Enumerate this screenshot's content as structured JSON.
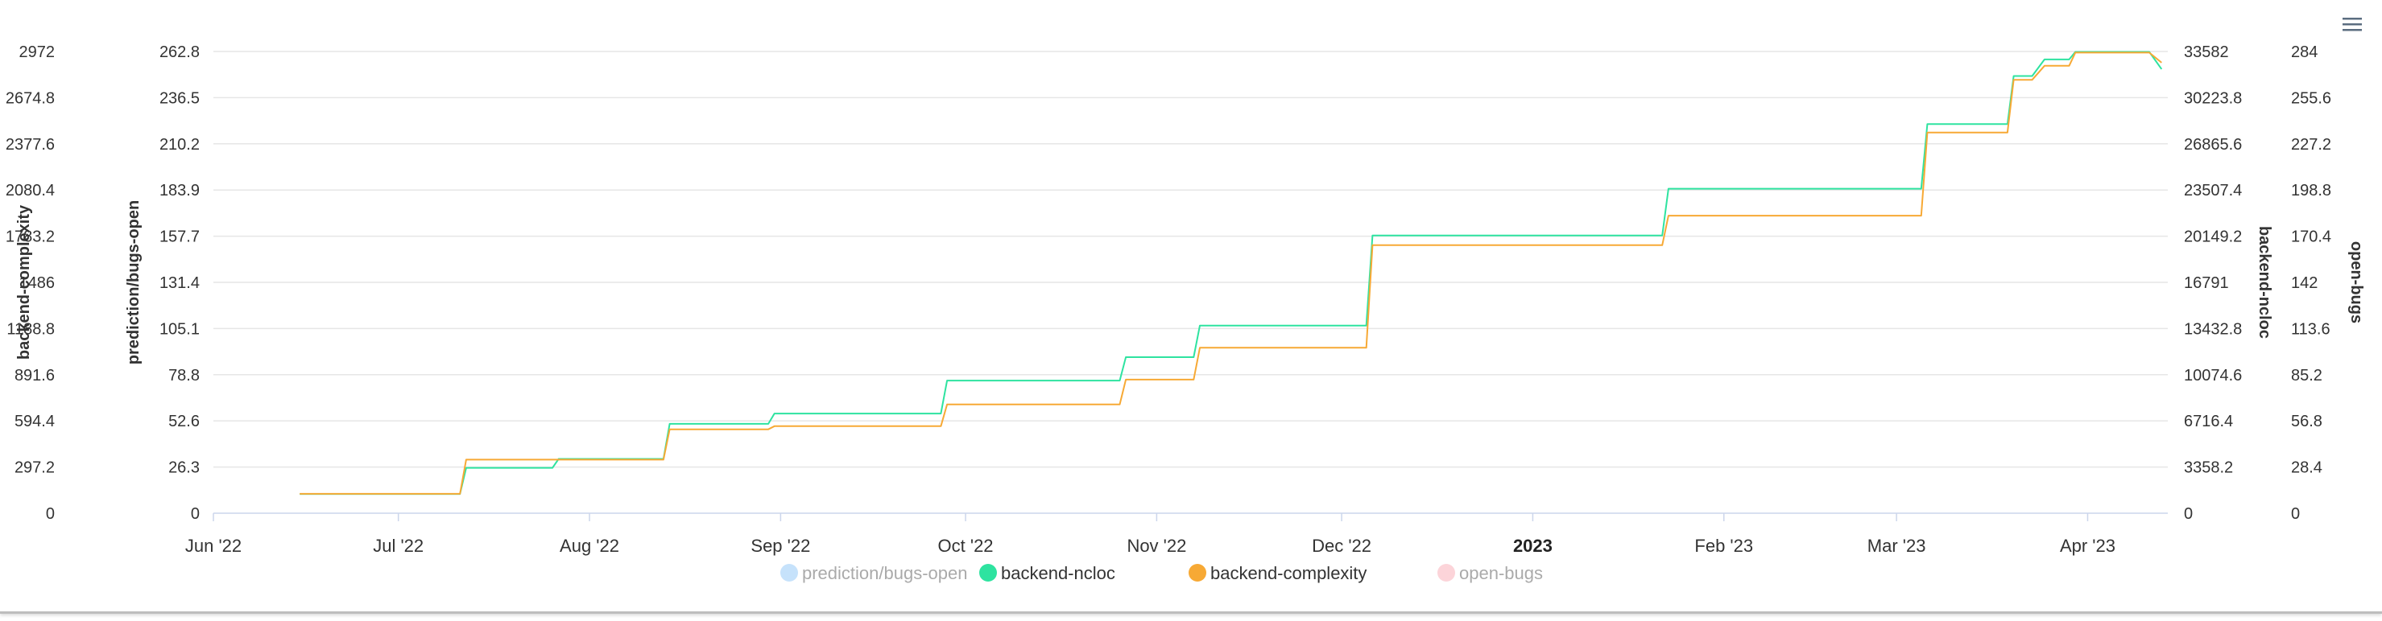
{
  "chart_data": {
    "type": "line",
    "x_axis": {
      "type": "datetime",
      "ticks": [
        "Jun '22",
        "Jul '22",
        "Aug '22",
        "Sep '22",
        "Oct '22",
        "Nov '22",
        "Dec '22",
        "2023",
        "Feb '23",
        "Mar '23",
        "Apr '23"
      ],
      "tick_dates": [
        "2022-06-01",
        "2022-07-01",
        "2022-08-01",
        "2022-09-01",
        "2022-10-01",
        "2022-11-01",
        "2022-12-01",
        "2023-01-01",
        "2023-02-01",
        "2023-03-01",
        "2023-04-01"
      ],
      "bold_ticks": [
        "2023"
      ],
      "range": [
        "2022-06-01",
        "2023-04-14"
      ]
    },
    "y_axes": [
      {
        "id": "backend-complexity",
        "title": "backend-complexity",
        "side": "left",
        "position": 0,
        "range": [
          0,
          2972
        ],
        "ticks": [
          "0",
          "297.2",
          "594.4",
          "891.6",
          "1188.8",
          "1486",
          "1783.2",
          "2080.4",
          "2377.6",
          "2674.8",
          "2972"
        ]
      },
      {
        "id": "prediction/bugs-open",
        "title": "prediction/bugs-open",
        "side": "left",
        "position": 1,
        "range": [
          0,
          262.8
        ],
        "ticks": [
          "0",
          "26.3",
          "52.6",
          "78.8",
          "105.1",
          "131.4",
          "157.7",
          "183.9",
          "210.2",
          "236.5",
          "262.8"
        ]
      },
      {
        "id": "backend-ncloc",
        "title": "backend-ncloc",
        "side": "right",
        "position": 0,
        "range": [
          0,
          33582
        ],
        "ticks": [
          "0",
          "3358.2",
          "6716.4",
          "10074.6",
          "13432.8",
          "16791",
          "20149.2",
          "23507.4",
          "26865.6",
          "30223.8",
          "33582"
        ]
      },
      {
        "id": "open-bugs",
        "title": "open-bugs",
        "side": "right",
        "position": 1,
        "range": [
          0,
          284
        ],
        "ticks": [
          "0",
          "28.4",
          "56.8",
          "85.2",
          "113.6",
          "142",
          "170.4",
          "198.8",
          "227.2",
          "255.6",
          "284"
        ]
      }
    ],
    "grid": true,
    "legend_position": "bottom-center",
    "series": [
      {
        "name": "prediction/bugs-open",
        "axis": "prediction/bugs-open",
        "color": "#c6e2fb",
        "visible": false,
        "points": []
      },
      {
        "name": "backend-ncloc",
        "axis": "backend-ncloc",
        "color": "#2ee3a0",
        "visible": true,
        "points": [
          [
            "2022-06-15",
            1400
          ],
          [
            "2022-07-11",
            1400
          ],
          [
            "2022-07-12",
            3300
          ],
          [
            "2022-07-26",
            3300
          ],
          [
            "2022-07-27",
            3950
          ],
          [
            "2022-08-13",
            3950
          ],
          [
            "2022-08-14",
            6500
          ],
          [
            "2022-08-30",
            6500
          ],
          [
            "2022-08-31",
            7250
          ],
          [
            "2022-09-27",
            7250
          ],
          [
            "2022-09-28",
            9650
          ],
          [
            "2022-10-26",
            9650
          ],
          [
            "2022-10-27",
            11350
          ],
          [
            "2022-11-07",
            11350
          ],
          [
            "2022-11-08",
            13650
          ],
          [
            "2022-12-05",
            13650
          ],
          [
            "2022-12-06",
            20200
          ],
          [
            "2023-01-22",
            20200
          ],
          [
            "2023-01-23",
            23600
          ],
          [
            "2023-03-05",
            23600
          ],
          [
            "2023-03-06",
            28300
          ],
          [
            "2023-03-19",
            28300
          ],
          [
            "2023-03-20",
            31800
          ],
          [
            "2023-03-23",
            31800
          ],
          [
            "2023-03-25",
            33000
          ],
          [
            "2023-03-29",
            33000
          ],
          [
            "2023-03-30",
            33550
          ],
          [
            "2023-04-11",
            33550
          ],
          [
            "2023-04-13",
            32300
          ]
        ]
      },
      {
        "name": "backend-complexity",
        "axis": "backend-complexity",
        "color": "#f7a935",
        "visible": true,
        "points": [
          [
            "2022-06-15",
            125
          ],
          [
            "2022-07-11",
            125
          ],
          [
            "2022-07-12",
            345
          ],
          [
            "2022-07-26",
            345
          ],
          [
            "2022-07-27",
            345
          ],
          [
            "2022-08-13",
            345
          ],
          [
            "2022-08-14",
            540
          ],
          [
            "2022-08-30",
            540
          ],
          [
            "2022-08-31",
            560
          ],
          [
            "2022-09-27",
            560
          ],
          [
            "2022-09-28",
            700
          ],
          [
            "2022-10-26",
            700
          ],
          [
            "2022-10-27",
            860
          ],
          [
            "2022-11-07",
            860
          ],
          [
            "2022-11-08",
            1065
          ],
          [
            "2022-12-05",
            1065
          ],
          [
            "2022-12-06",
            1725
          ],
          [
            "2023-01-22",
            1725
          ],
          [
            "2023-01-23",
            1915
          ],
          [
            "2023-03-05",
            1915
          ],
          [
            "2023-03-06",
            2450
          ],
          [
            "2023-03-19",
            2450
          ],
          [
            "2023-03-20",
            2790
          ],
          [
            "2023-03-23",
            2790
          ],
          [
            "2023-03-25",
            2880
          ],
          [
            "2023-03-29",
            2880
          ],
          [
            "2023-03-30",
            2965
          ],
          [
            "2023-04-11",
            2965
          ],
          [
            "2023-04-13",
            2900
          ]
        ]
      },
      {
        "name": "open-bugs",
        "axis": "open-bugs",
        "color": "#fcd4d9",
        "visible": false,
        "points": []
      }
    ]
  },
  "icons": {
    "menu": "hamburger-menu-icon"
  }
}
